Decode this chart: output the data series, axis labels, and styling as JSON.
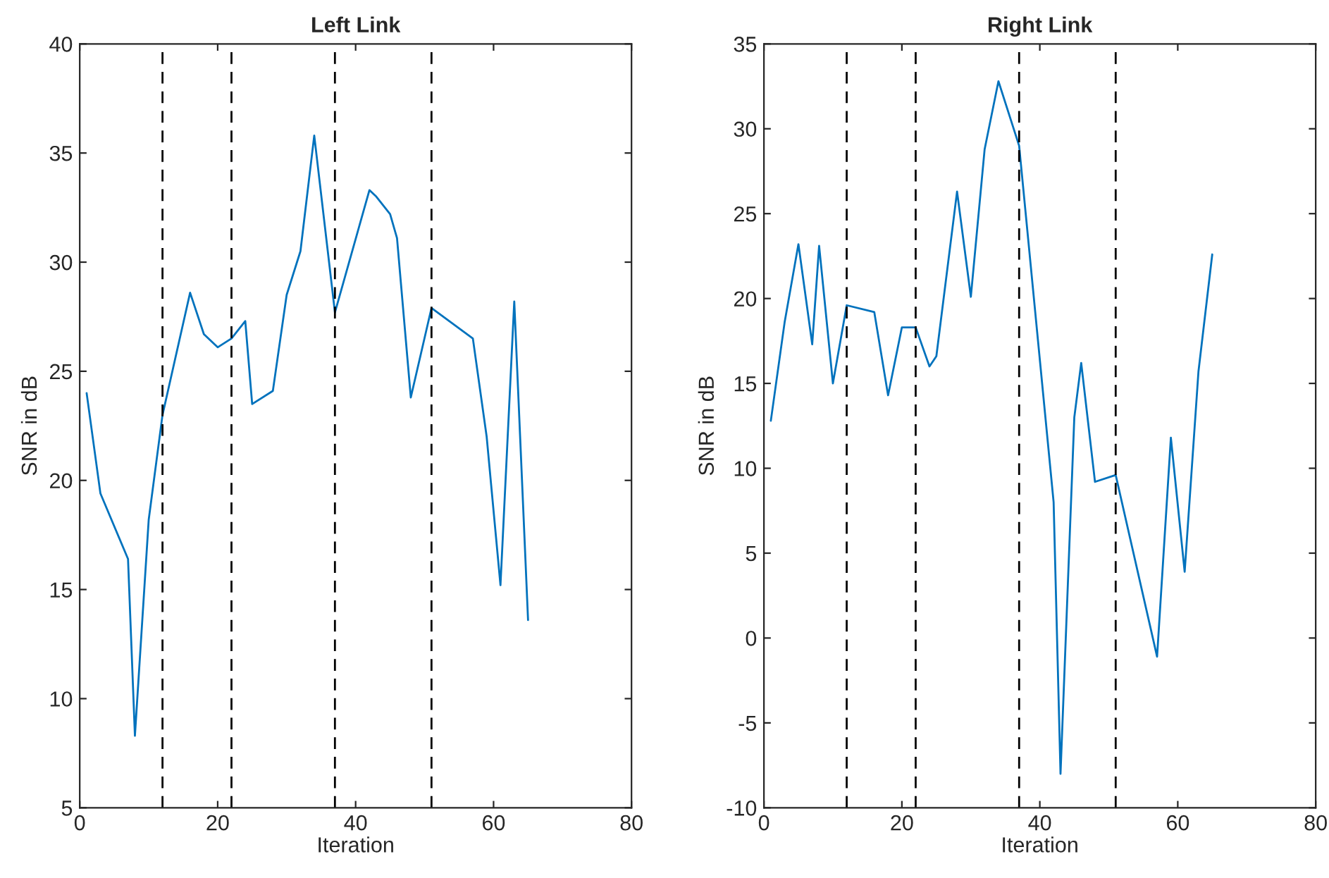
{
  "chart_data": [
    {
      "type": "line",
      "title": "Left Link",
      "xlabel": "Iteration",
      "ylabel": "SNR in dB",
      "xlim": [
        0,
        80
      ],
      "xticks": [
        0,
        20,
        40,
        60,
        80
      ],
      "ylim": [
        5,
        40
      ],
      "yticks": [
        5,
        10,
        15,
        20,
        25,
        30,
        35,
        40
      ],
      "grid": false,
      "legend": false,
      "ref_lines": [
        {
          "axis": "x",
          "value": 12,
          "line_style": "dashed",
          "color": "#000000"
        },
        {
          "axis": "x",
          "value": 22,
          "line_style": "dashed",
          "color": "#000000"
        },
        {
          "axis": "x",
          "value": 37,
          "line_style": "dashed",
          "color": "#000000"
        },
        {
          "axis": "x",
          "value": 51,
          "line_style": "dashed",
          "color": "#000000"
        }
      ],
      "series": [
        {
          "color": "#0072bd",
          "x": [
            1,
            3,
            7,
            8,
            10,
            12,
            16,
            18,
            20,
            22,
            24,
            25,
            28,
            30,
            32,
            34,
            37,
            42,
            43,
            45,
            46,
            48,
            51,
            57,
            59,
            61,
            63,
            65
          ],
          "values": [
            24,
            19.4,
            16.4,
            8.3,
            18.2,
            23,
            28.6,
            26.7,
            26.1,
            26.5,
            27.3,
            23.5,
            24.1,
            28.5,
            30.5,
            35.8,
            27.7,
            33.3,
            33,
            32.2,
            31.1,
            23.8,
            27.9,
            26.5,
            22,
            15.2,
            28.2,
            13.6
          ]
        }
      ]
    },
    {
      "type": "line",
      "title": "Right Link",
      "xlabel": "Iteration",
      "ylabel": "SNR in dB",
      "xlim": [
        0,
        80
      ],
      "xticks": [
        0,
        20,
        40,
        60,
        80
      ],
      "ylim": [
        -10,
        35
      ],
      "yticks": [
        -10,
        -5,
        0,
        5,
        10,
        15,
        20,
        25,
        30,
        35
      ],
      "grid": false,
      "legend": false,
      "ref_lines": [
        {
          "axis": "x",
          "value": 12,
          "line_style": "dashed",
          "color": "#000000"
        },
        {
          "axis": "x",
          "value": 22,
          "line_style": "dashed",
          "color": "#000000"
        },
        {
          "axis": "x",
          "value": 37,
          "line_style": "dashed",
          "color": "#000000"
        },
        {
          "axis": "x",
          "value": 51,
          "line_style": "dashed",
          "color": "#000000"
        }
      ],
      "series": [
        {
          "color": "#0072bd",
          "x": [
            1,
            3,
            5,
            7,
            8,
            10,
            12,
            16,
            18,
            20,
            22,
            24,
            25,
            28,
            30,
            32,
            34,
            37,
            42,
            43,
            45,
            46,
            48,
            51,
            57,
            59,
            61,
            63,
            65
          ],
          "values": [
            12.8,
            18.6,
            23.2,
            17.3,
            23.1,
            15,
            19.6,
            19.2,
            14.3,
            18.3,
            18.3,
            16,
            16.6,
            26.3,
            20.1,
            28.8,
            32.8,
            29,
            8,
            -8,
            13,
            16.2,
            9.2,
            9.6,
            -1.1,
            11.8,
            3.9,
            15.7,
            22.6
          ]
        }
      ]
    }
  ]
}
